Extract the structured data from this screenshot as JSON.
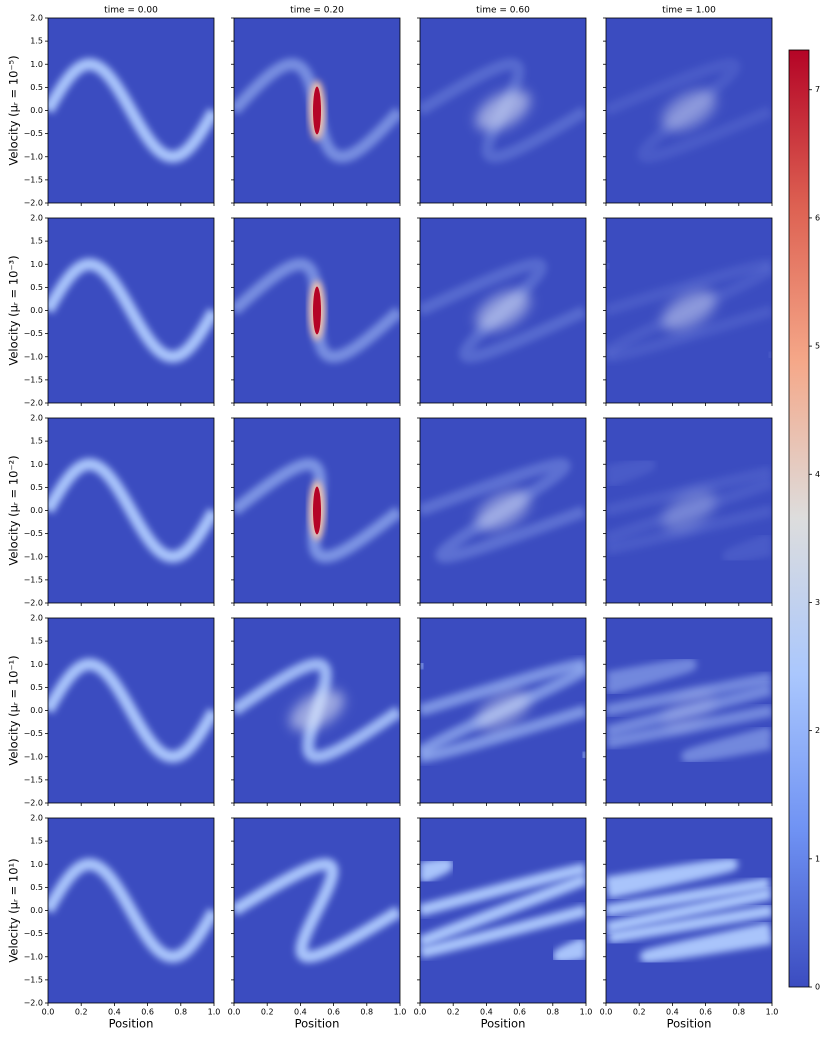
{
  "chart_data": {
    "type": "heatmap",
    "column_titles": [
      "time = 0.00",
      "time = 0.20",
      "time = 0.60",
      "time = 1.00"
    ],
    "row_labels": [
      "Velocity (μᵣ = 10⁻⁵)",
      "Velocity (μᵣ = 10⁻³)",
      "Velocity (μᵣ = 10⁻²)",
      "Velocity (μᵣ = 10⁻¹)",
      "Velocity (μᵣ = 10¹)"
    ],
    "xlabel": "Position",
    "xlim": [
      0,
      1
    ],
    "xticks": [
      {
        "value": 0,
        "label": "0.0"
      },
      {
        "value": 0.2,
        "label": "0.2"
      },
      {
        "value": 0.4,
        "label": "0.4"
      },
      {
        "value": 0.6,
        "label": "0.6"
      },
      {
        "value": 0.8,
        "label": "0.8"
      },
      {
        "value": 1,
        "label": "1.0"
      }
    ],
    "ylim": [
      -2,
      2
    ],
    "yticks": [
      {
        "value": -2,
        "label": "−2.0"
      },
      {
        "value": -1.5,
        "label": "−1.5"
      },
      {
        "value": -1,
        "label": "−1.0"
      },
      {
        "value": -0.5,
        "label": "−0.5"
      },
      {
        "value": 0,
        "label": "0.0"
      },
      {
        "value": 0.5,
        "label": "0.5"
      },
      {
        "value": 1,
        "label": "1.0"
      },
      {
        "value": 1.5,
        "label": "1.5"
      },
      {
        "value": 2,
        "label": "2.0"
      }
    ],
    "colorbar": {
      "lim": [
        0,
        7.31
      ],
      "ticks": [
        0,
        1,
        2,
        3,
        4,
        5,
        6,
        7
      ],
      "colormap": [
        "#3b4cc0",
        "#dddddd",
        "#b40426"
      ]
    }
  }
}
